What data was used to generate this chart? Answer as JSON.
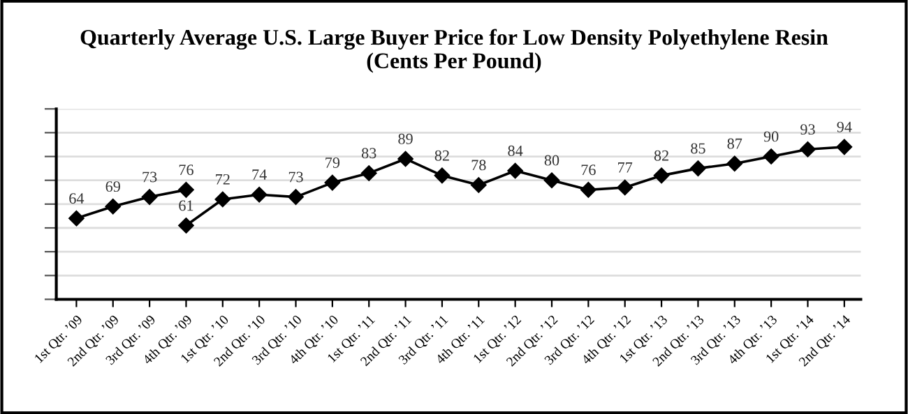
{
  "chart_data": {
    "type": "line",
    "title": "Quarterly Average U.S. Large Buyer Price for Low Density Polyethylene Resin\n(Cents Per Pound)",
    "categories": [
      "1st Qtr. ’09",
      "2nd Qtr. ’09",
      "3rd Qtr. ’09",
      "4th Qtr. ’09",
      "1st Qtr. ’10",
      "2nd Qtr. ’10",
      "3rd Qtr. ’10",
      "4th Qtr. ’10",
      "1st Qtr. ’11",
      "2nd Qtr. ’11",
      "3rd Qtr. ’11",
      "4th Qtr. ’11",
      "1st Qtr. ’12",
      "2nd Qtr. ’12",
      "3rd Qtr. ’12",
      "4th Qtr. ’12",
      "1st Qtr. ’13",
      "2nd Qtr. ’13",
      "3rd Qtr. ’13",
      "4th Qtr. ’13",
      "1st Qtr. ’14",
      "2nd Qtr. ’14"
    ],
    "series": [
      {
        "color": "#000000",
        "values": [
          64,
          69,
          73,
          76,
          null,
          null,
          null,
          null,
          null,
          null,
          null,
          null,
          null,
          null,
          null,
          null,
          null,
          null,
          null,
          null,
          null,
          null
        ]
      },
      {
        "color": "#000000",
        "values": [
          null,
          null,
          null,
          61,
          72,
          74,
          73,
          79,
          83,
          89,
          82,
          78,
          84,
          80,
          76,
          77,
          82,
          85,
          87,
          90,
          93,
          94
        ]
      }
    ],
    "ylim": [
      30,
      110
    ],
    "yticks": [
      {
        "value": 30,
        "label": null
      },
      {
        "value": 40,
        "label": null
      },
      {
        "value": 50,
        "label": null
      },
      {
        "value": 60,
        "label": null
      },
      {
        "value": 70,
        "label": null
      },
      {
        "value": 80,
        "label": null
      },
      {
        "value": 90,
        "label": null
      },
      {
        "value": 100,
        "label": null
      },
      {
        "value": 110,
        "label": null
      }
    ],
    "tick_labels": "x",
    "grid": "y",
    "marker": "diamond",
    "line_style": "solid",
    "data_labels": true,
    "legend": false
  }
}
